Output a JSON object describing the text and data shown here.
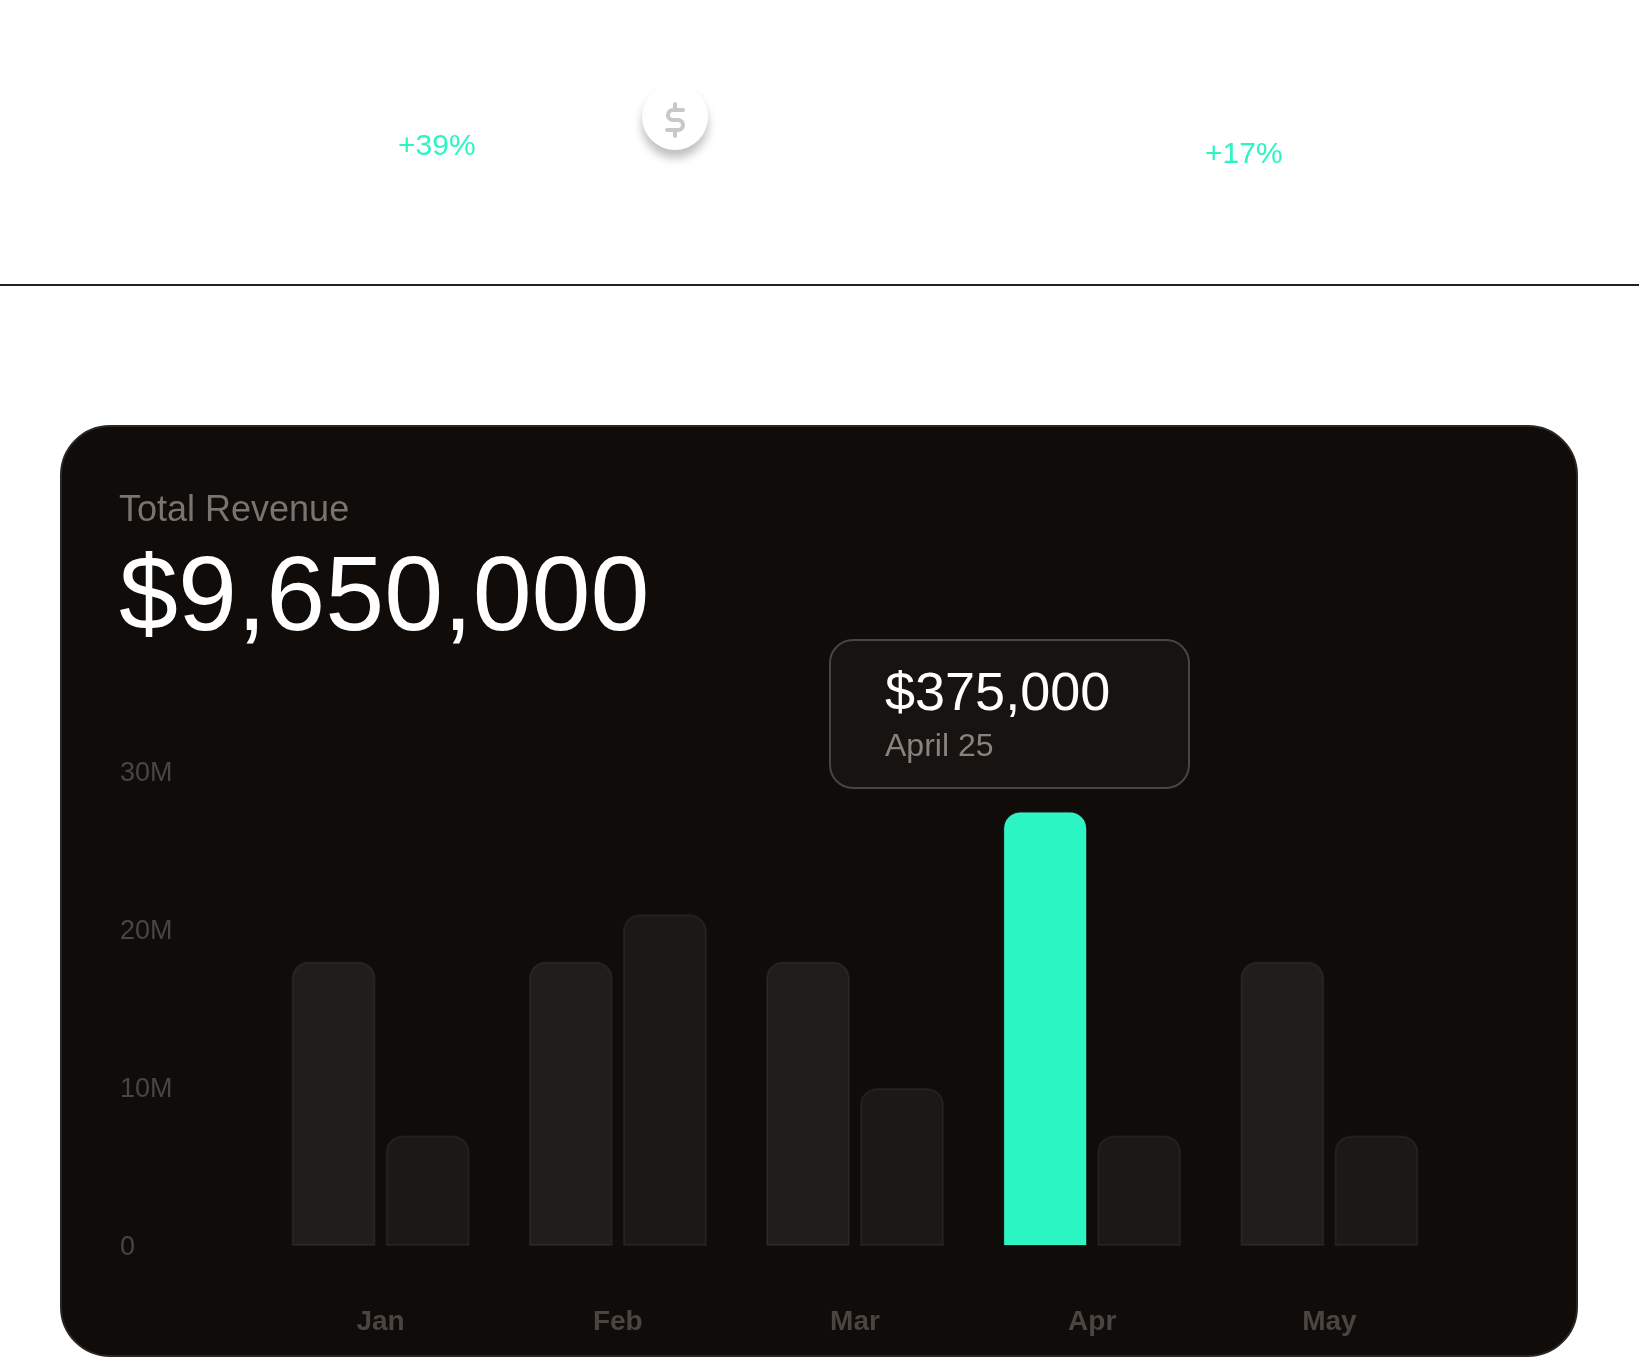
{
  "chart_data": {
    "type": "bar",
    "title": "Total Revenue",
    "subtitle": "$9,650,000",
    "categories": [
      "Jan",
      "Feb",
      "Mar",
      "Apr",
      "May"
    ],
    "series": [
      {
        "colors": [
          "#211d1a",
          "#211d1a",
          "#211d1a",
          "#2cf5c4",
          "#211d1a"
        ],
        "values": [
          18,
          18,
          18,
          27.5,
          18
        ]
      },
      {
        "color": "#1c1816",
        "values": [
          7,
          21,
          10,
          7,
          7
        ]
      }
    ],
    "ylim": [
      0,
      30
    ],
    "yticks": [
      {
        "value": 0,
        "label": "0"
      },
      {
        "value": 10,
        "label": "10M"
      },
      {
        "value": 20,
        "label": "20M"
      },
      {
        "value": 30,
        "label": "30M"
      }
    ],
    "annotations": [
      "+39%",
      "+17%",
      "$375,000",
      "April 25"
    ]
  }
}
